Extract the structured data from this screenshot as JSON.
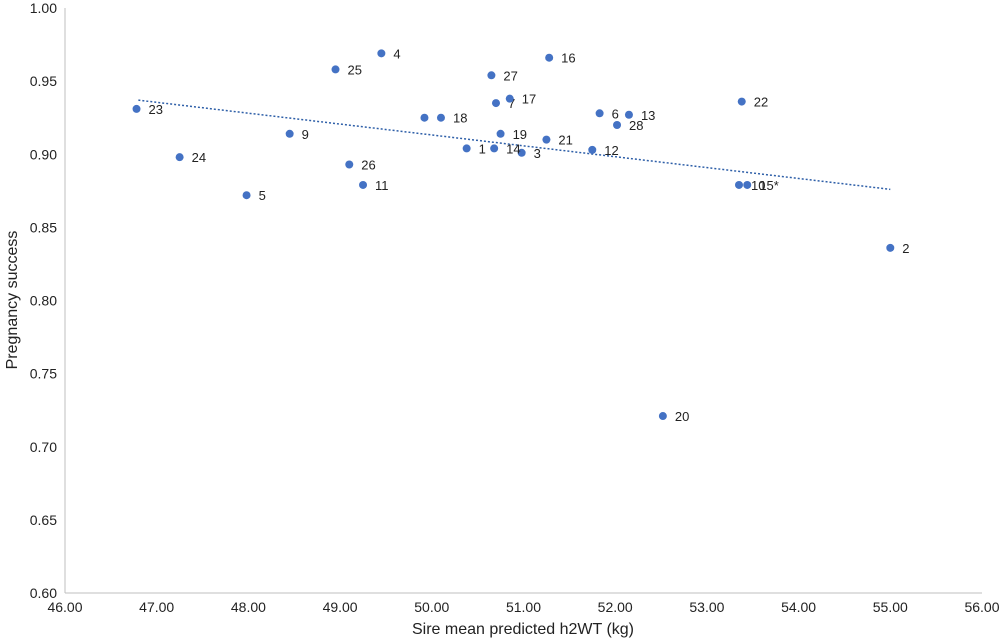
{
  "chart_data": {
    "type": "scatter",
    "title": "",
    "xlabel": "Sire mean predicted h2WT (kg)",
    "ylabel": "Pregnancy success",
    "xlim": [
      46.0,
      56.0
    ],
    "ylim": [
      0.6,
      1.0
    ],
    "x_ticks": [
      "46.00",
      "47.00",
      "48.00",
      "49.00",
      "50.00",
      "51.00",
      "52.00",
      "53.00",
      "54.00",
      "55.00",
      "56.00"
    ],
    "y_ticks": [
      "0.60",
      "0.65",
      "0.70",
      "0.75",
      "0.80",
      "0.85",
      "0.90",
      "0.95",
      "1.00"
    ],
    "grid": false,
    "point_color": "#4472c4",
    "trendline": {
      "style": "dotted",
      "color": "#2e5fa8",
      "x": [
        46.8,
        55.0
      ],
      "y": [
        0.937,
        0.876
      ]
    },
    "points": [
      {
        "label": "1",
        "x": 50.38,
        "y": 0.904
      },
      {
        "label": "2",
        "x": 55.0,
        "y": 0.836
      },
      {
        "label": "3",
        "x": 50.98,
        "y": 0.901
      },
      {
        "label": "4",
        "x": 49.45,
        "y": 0.969
      },
      {
        "label": "5",
        "x": 47.98,
        "y": 0.872
      },
      {
        "label": "6",
        "x": 51.83,
        "y": 0.928
      },
      {
        "label": "7",
        "x": 50.7,
        "y": 0.935
      },
      {
        "label": "9",
        "x": 48.45,
        "y": 0.914
      },
      {
        "label": "10",
        "x": 53.35,
        "y": 0.879
      },
      {
        "label": "11",
        "x": 49.25,
        "y": 0.879
      },
      {
        "label": "12",
        "x": 51.75,
        "y": 0.903
      },
      {
        "label": "13",
        "x": 52.15,
        "y": 0.927
      },
      {
        "label": "14",
        "x": 50.68,
        "y": 0.904
      },
      {
        "label": "15*",
        "x": 53.44,
        "y": 0.879
      },
      {
        "label": "16",
        "x": 51.28,
        "y": 0.966
      },
      {
        "label": "17",
        "x": 50.85,
        "y": 0.938
      },
      {
        "label": "18",
        "x": 50.1,
        "y": 0.925
      },
      {
        "label": "19",
        "x": 50.75,
        "y": 0.914
      },
      {
        "label": "20",
        "x": 52.52,
        "y": 0.721
      },
      {
        "label": "21",
        "x": 51.25,
        "y": 0.91
      },
      {
        "label": "22",
        "x": 53.38,
        "y": 0.936
      },
      {
        "label": "23",
        "x": 46.78,
        "y": 0.931
      },
      {
        "label": "24",
        "x": 47.25,
        "y": 0.898
      },
      {
        "label": "25",
        "x": 48.95,
        "y": 0.958
      },
      {
        "label": "26",
        "x": 49.1,
        "y": 0.893
      },
      {
        "label": "27",
        "x": 50.65,
        "y": 0.954
      },
      {
        "label": "28",
        "x": 52.02,
        "y": 0.92
      },
      {
        "label": "",
        "x": 49.92,
        "y": 0.925
      }
    ]
  }
}
